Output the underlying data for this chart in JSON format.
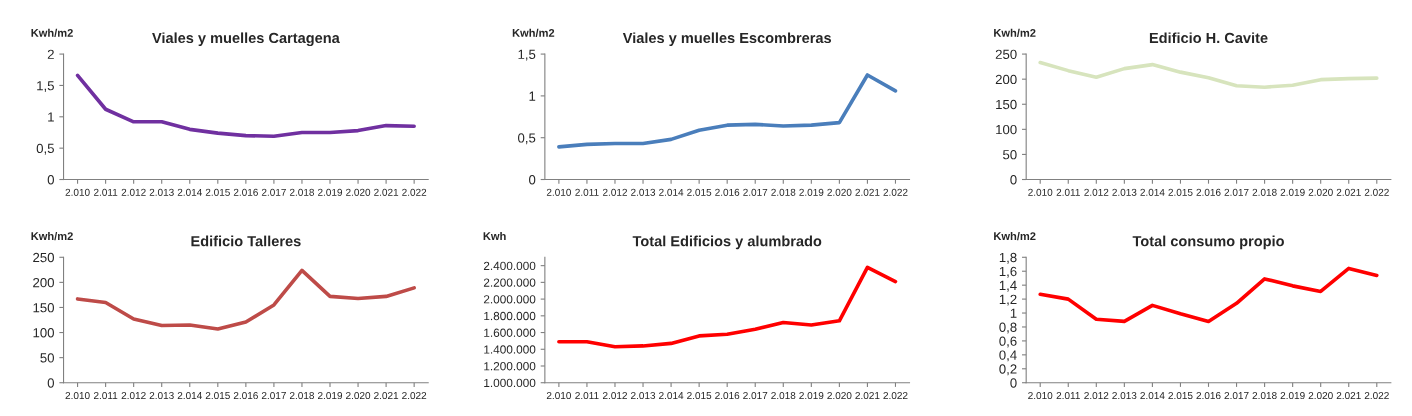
{
  "chart_data": [
    {
      "type": "line",
      "title": "Viales y muelles Cartagena",
      "ylabel": "Kwh/m2",
      "categories": [
        "2.010",
        "2.011",
        "2.012",
        "2.013",
        "2.014",
        "2.015",
        "2.016",
        "2.017",
        "2.018",
        "2.019",
        "2.020",
        "2.021",
        "2.022"
      ],
      "series": [
        {
          "color": "#7030a0",
          "values": [
            1.66,
            1.12,
            0.92,
            0.92,
            0.8,
            0.74,
            0.7,
            0.69,
            0.75,
            0.75,
            0.78,
            0.86,
            0.85
          ]
        }
      ],
      "ylim": [
        0,
        2
      ],
      "yticks": [
        0,
        {
          "value": 0.5,
          "label": "0,5"
        },
        1,
        {
          "value": 1.5,
          "label": "1,5"
        },
        2
      ]
    },
    {
      "type": "line",
      "title": "Viales y muelles Escombreras",
      "ylabel": "Kwh/m2",
      "categories": [
        "2.010",
        "2.011",
        "2.012",
        "2.013",
        "2.014",
        "2.015",
        "2.016",
        "2.017",
        "2.018",
        "2.019",
        "2.020",
        "2.021",
        "2.022"
      ],
      "series": [
        {
          "color": "#4a7ebb",
          "values": [
            0.39,
            0.42,
            0.43,
            0.43,
            0.48,
            0.59,
            0.65,
            0.66,
            0.64,
            0.65,
            0.68,
            1.25,
            1.06
          ]
        }
      ],
      "ylim": [
        0,
        1.5
      ],
      "yticks": [
        0,
        {
          "value": 0.5,
          "label": "0,5"
        },
        1,
        {
          "value": 1.5,
          "label": "1,5"
        }
      ]
    },
    {
      "type": "line",
      "title": "Edificio H. Cavite",
      "ylabel": "Kwh/m2",
      "categories": [
        "2.010",
        "2.011",
        "2.012",
        "2.013",
        "2.014",
        "2.015",
        "2.016",
        "2.017",
        "2.018",
        "2.019",
        "2.020",
        "2.021",
        "2.022"
      ],
      "series": [
        {
          "color": "#d7e4bd",
          "values": [
            233,
            217,
            204,
            221,
            229,
            214,
            203,
            187,
            184,
            188,
            199,
            201,
            202
          ]
        }
      ],
      "ylim": [
        0,
        250
      ],
      "yticks": [
        0,
        50,
        100,
        150,
        200,
        250
      ]
    },
    {
      "type": "line",
      "title": "Edificio Talleres",
      "ylabel": "Kwh/m2",
      "categories": [
        "2.010",
        "2.011",
        "2.012",
        "2.013",
        "2.014",
        "2.015",
        "2.016",
        "2.017",
        "2.018",
        "2.019",
        "2.020",
        "2.021",
        "2.022"
      ],
      "series": [
        {
          "color": "#be4b48",
          "values": [
            167,
            160,
            127,
            114,
            115,
            107,
            121,
            155,
            224,
            172,
            168,
            172,
            189
          ]
        }
      ],
      "ylim": [
        0,
        250
      ],
      "yticks": [
        0,
        50,
        100,
        150,
        200,
        250
      ]
    },
    {
      "type": "line",
      "title": "Total Edificios y alumbrado",
      "ylabel": "Kwh",
      "categories": [
        "2.010",
        "2.011",
        "2.012",
        "2.013",
        "2.014",
        "2.015",
        "2.016",
        "2.017",
        "2.018",
        "2.019",
        "2.020",
        "2.021",
        "2.022"
      ],
      "series": [
        {
          "color": "#ff0000",
          "values": [
            1490000,
            1490000,
            1430000,
            1440000,
            1470000,
            1560000,
            1580000,
            1640000,
            1720000,
            1690000,
            1740000,
            2380000,
            2210000
          ]
        }
      ],
      "ylim": [
        1000000,
        2500000
      ],
      "yticks": [
        {
          "value": 1000000,
          "label": "1.000.000"
        },
        {
          "value": 1200000,
          "label": "1.200.000"
        },
        {
          "value": 1400000,
          "label": "1.400.000"
        },
        {
          "value": 1600000,
          "label": "1.600.000"
        },
        {
          "value": 1800000,
          "label": "1.800.000"
        },
        {
          "value": 2000000,
          "label": "2.000.000"
        },
        {
          "value": 2200000,
          "label": "2.200.000"
        },
        {
          "value": 2400000,
          "label": "2.400.000"
        }
      ]
    },
    {
      "type": "line",
      "title": "Total consumo propio",
      "ylabel": "Kwh/m2",
      "categories": [
        "2.010",
        "2.011",
        "2.012",
        "2.013",
        "2.014",
        "2.015",
        "2.016",
        "2.017",
        "2.018",
        "2.019",
        "2.020",
        "2.021",
        "2.022"
      ],
      "series": [
        {
          "color": "#ff0000",
          "values": [
            1.27,
            1.2,
            0.91,
            0.88,
            1.11,
            0.99,
            0.88,
            1.14,
            1.49,
            1.39,
            1.31,
            1.64,
            1.54
          ]
        }
      ],
      "ylim": [
        0,
        1.8
      ],
      "yticks": [
        0,
        {
          "value": 0.2,
          "label": "0,2"
        },
        {
          "value": 0.4,
          "label": "0,4"
        },
        {
          "value": 0.6,
          "label": "0,6"
        },
        {
          "value": 0.8,
          "label": "0,8"
        },
        1,
        {
          "value": 1.2,
          "label": "1,2"
        },
        {
          "value": 1.4,
          "label": "1,4"
        },
        {
          "value": 1.6,
          "label": "1,6"
        },
        {
          "value": 1.8,
          "label": "1,8"
        }
      ]
    }
  ]
}
